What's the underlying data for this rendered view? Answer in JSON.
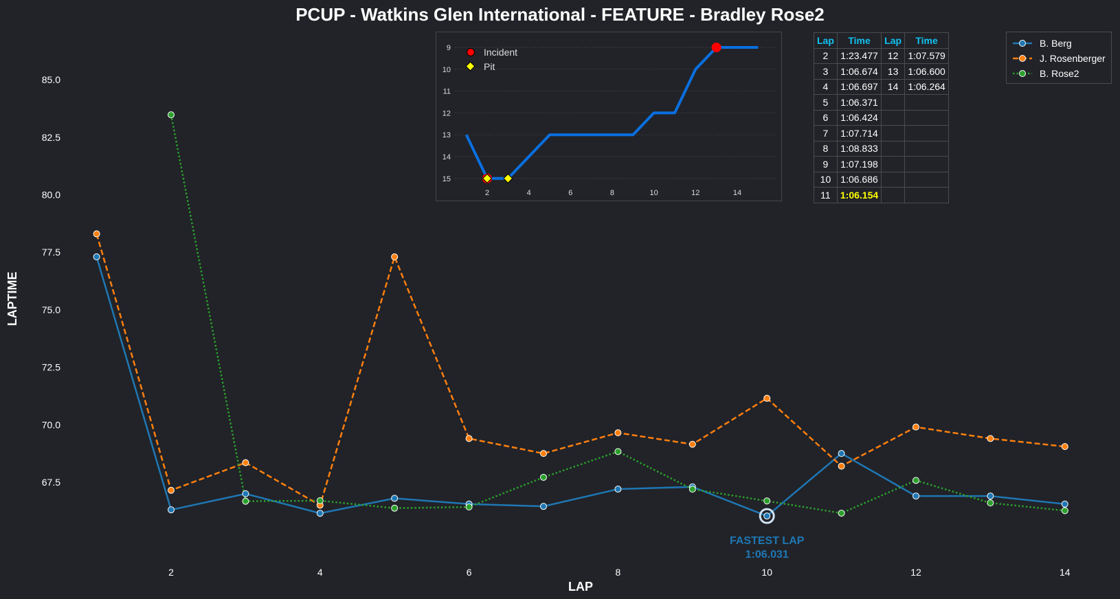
{
  "chart_data": [
    {
      "type": "line",
      "title": "PCUP - Watkins Glen International - FEATURE - Bradley Rose2",
      "xlabel": "LAP",
      "ylabel": "LAPTIME",
      "xlim": [
        0.6,
        14.4
      ],
      "ylim": [
        64.8,
        86.5
      ],
      "x_ticks": [
        2,
        4,
        6,
        8,
        10,
        12,
        14
      ],
      "y_ticks": [
        "67.5",
        "70.0",
        "72.5",
        "75.0",
        "77.5",
        "80.0",
        "82.5",
        "85.0"
      ],
      "legend_position": "top-right",
      "series": [
        {
          "name": "B. Berg",
          "color": "#1f77b4",
          "style": "solid",
          "x": [
            1,
            2,
            3,
            4,
            5,
            6,
            7,
            8,
            9,
            10,
            11,
            12,
            13,
            14
          ],
          "values": [
            77.3,
            66.3,
            67.0,
            66.15,
            66.8,
            66.55,
            66.45,
            67.2,
            67.3,
            66.031,
            68.75,
            66.9,
            66.9,
            66.55
          ]
        },
        {
          "name": "J. Rosenberger",
          "color": "#ff7f0e",
          "style": "dashed",
          "x": [
            1,
            2,
            3,
            4,
            5,
            6,
            7,
            8,
            9,
            10,
            11,
            12,
            13,
            14
          ],
          "values": [
            78.3,
            67.15,
            68.35,
            66.5,
            77.3,
            69.4,
            68.75,
            69.65,
            69.15,
            71.15,
            68.2,
            69.9,
            69.4,
            69.05
          ]
        },
        {
          "name": "B. Rose2",
          "color": "#2ca02c",
          "style": "dotted",
          "x": [
            2,
            3,
            4,
            5,
            6,
            7,
            8,
            9,
            10,
            11,
            12,
            13,
            14
          ],
          "values": [
            83.477,
            66.674,
            66.697,
            66.371,
            66.424,
            67.714,
            68.833,
            67.198,
            66.686,
            66.154,
            67.579,
            66.6,
            66.264
          ]
        }
      ],
      "annotation": {
        "label": "FASTEST LAP",
        "value_text": "1:06.031",
        "lap": 10,
        "laptime": 66.031,
        "color": "#1f77b4"
      }
    },
    {
      "type": "line",
      "title": "Position",
      "x_ticks": [
        2,
        4,
        6,
        8,
        10,
        12,
        14
      ],
      "y_ticks": [
        "9",
        "10",
        "11",
        "12",
        "13",
        "14",
        "15"
      ],
      "ylim": [
        15.5,
        8.6
      ],
      "xlim": [
        0.5,
        15.5
      ],
      "color": "#0a6fe0",
      "x": [
        1,
        2,
        3,
        4,
        5,
        6,
        7,
        8,
        9,
        10,
        11,
        12,
        13,
        14,
        15
      ],
      "values": [
        13,
        15,
        15,
        14,
        13,
        13,
        13,
        13,
        13,
        12,
        12,
        10,
        9,
        9,
        9
      ],
      "incidents": [
        {
          "lap": 2,
          "pos": 15
        },
        {
          "lap": 13,
          "pos": 9
        }
      ],
      "pits": [
        {
          "lap": 2,
          "pos": 15
        },
        {
          "lap": 3,
          "pos": 15
        }
      ],
      "legend": {
        "incident": "Incident",
        "pit": "Pit"
      }
    }
  ],
  "lap_table": {
    "headers": [
      "Lap",
      "Time",
      "Lap",
      "Time"
    ],
    "rows": [
      [
        "2",
        "1:23.477",
        "12",
        "1:07.579"
      ],
      [
        "3",
        "1:06.674",
        "13",
        "1:06.600"
      ],
      [
        "4",
        "1:06.697",
        "14",
        "1:06.264"
      ],
      [
        "5",
        "1:06.371",
        "",
        ""
      ],
      [
        "6",
        "1:06.424",
        "",
        ""
      ],
      [
        "7",
        "1:07.714",
        "",
        ""
      ],
      [
        "8",
        "1:08.833",
        "",
        ""
      ],
      [
        "9",
        "1:07.198",
        "",
        ""
      ],
      [
        "10",
        "1:06.686",
        "",
        ""
      ],
      [
        "11",
        "1:06.154",
        "",
        ""
      ]
    ],
    "best_time": "1:06.154",
    "best_color": "#ffff00",
    "header_color": "#12c2f0"
  }
}
